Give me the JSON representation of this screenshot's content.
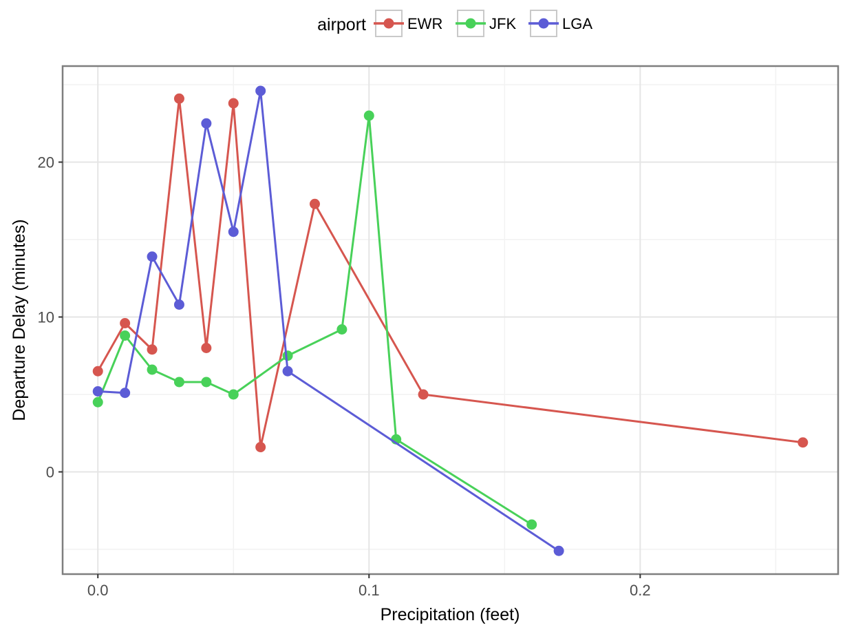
{
  "chart_data": {
    "type": "line",
    "title": "",
    "xlabel": "Precipitation (feet)",
    "ylabel": "Departure Delay (minutes)",
    "legend_title": "airport",
    "legend_position": "top",
    "grid": true,
    "xlim": [
      -0.013,
      0.273
    ],
    "ylim": [
      -6.6,
      26.2
    ],
    "xticks": [
      0.0,
      0.1,
      0.2
    ],
    "xtick_labels": [
      "0.0",
      "0.1",
      "0.2"
    ],
    "xticks_minor": [
      0.05,
      0.15,
      0.25
    ],
    "yticks": [
      0,
      10,
      20
    ],
    "ytick_labels": [
      "0",
      "10",
      "20"
    ],
    "yticks_minor": [
      -5,
      5,
      15,
      25
    ],
    "series": [
      {
        "name": "EWR",
        "color": "#D6564F",
        "x": [
          0.0,
          0.01,
          0.02,
          0.03,
          0.04,
          0.05,
          0.06,
          0.08,
          0.12,
          0.26
        ],
        "y": [
          6.5,
          9.6,
          7.9,
          24.1,
          8.0,
          23.8,
          1.6,
          17.3,
          5.0,
          1.9
        ]
      },
      {
        "name": "JFK",
        "color": "#48D159",
        "x": [
          0.0,
          0.01,
          0.02,
          0.03,
          0.04,
          0.05,
          0.07,
          0.09,
          0.1,
          0.11,
          0.16
        ],
        "y": [
          4.5,
          8.8,
          6.6,
          5.8,
          5.8,
          5.0,
          7.5,
          9.2,
          23.0,
          2.1,
          -3.4
        ]
      },
      {
        "name": "LGA",
        "color": "#5C5CD6",
        "x": [
          0.0,
          0.01,
          0.02,
          0.03,
          0.04,
          0.05,
          0.06,
          0.07,
          0.17
        ],
        "y": [
          5.2,
          5.1,
          13.9,
          10.8,
          22.5,
          15.5,
          24.6,
          6.5,
          -5.1
        ]
      }
    ],
    "theme": {
      "panel_background": "#ffffff",
      "grid_major_color": "#e5e5e5",
      "grid_minor_color": "#f2f2f2",
      "panel_border_color": "#7e7e7e",
      "tick_mark_color": "#333333",
      "tick_label_color": "#4d4d4d",
      "legend_key_border_color": "#c9c9c9",
      "legend_key_fill": "#ffffff"
    }
  }
}
